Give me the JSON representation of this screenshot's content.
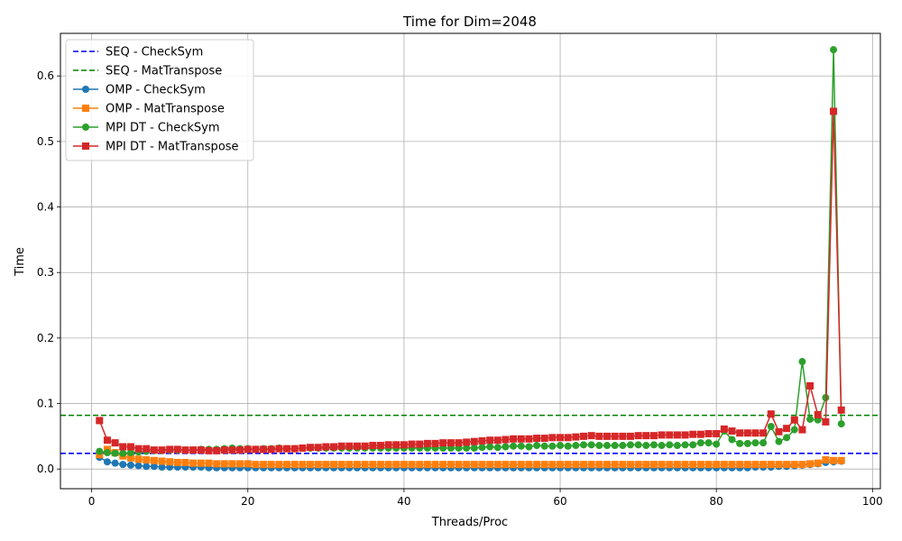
{
  "chart_data": {
    "type": "line",
    "title": "Time for Dim=2048",
    "xlabel": "Threads/Proc",
    "ylabel": "Time",
    "xlim": [
      -4,
      101
    ],
    "ylim": [
      -0.03,
      0.665
    ],
    "xticks": [
      0,
      20,
      40,
      60,
      80,
      100
    ],
    "yticks": [
      0.0,
      0.1,
      0.2,
      0.3,
      0.4,
      0.5,
      0.6
    ],
    "grid": true,
    "legend_position": "top-left",
    "reference_lines": [
      {
        "name": "SEQ - CheckSym",
        "y": 0.024,
        "color": "#0000ff",
        "style": "dashed"
      },
      {
        "name": "SEQ - MatTranspose",
        "y": 0.082,
        "color": "#008000",
        "style": "dashed"
      }
    ],
    "x": [
      1,
      2,
      3,
      4,
      5,
      6,
      7,
      8,
      9,
      10,
      11,
      12,
      13,
      14,
      15,
      16,
      17,
      18,
      19,
      20,
      21,
      22,
      23,
      24,
      25,
      26,
      27,
      28,
      29,
      30,
      31,
      32,
      33,
      34,
      35,
      36,
      37,
      38,
      39,
      40,
      41,
      42,
      43,
      44,
      45,
      46,
      47,
      48,
      49,
      50,
      51,
      52,
      53,
      54,
      55,
      56,
      57,
      58,
      59,
      60,
      61,
      62,
      63,
      64,
      65,
      66,
      67,
      68,
      69,
      70,
      71,
      72,
      73,
      74,
      75,
      76,
      77,
      78,
      79,
      80,
      81,
      82,
      83,
      84,
      85,
      86,
      87,
      88,
      89,
      90,
      91,
      92,
      93,
      94,
      95,
      96
    ],
    "series": [
      {
        "name": "OMP - CheckSym",
        "color": "#1f77b4",
        "marker": "circle",
        "values": [
          0.018,
          0.011,
          0.009,
          0.007,
          0.006,
          0.005,
          0.004,
          0.004,
          0.003,
          0.003,
          0.003,
          0.003,
          0.003,
          0.003,
          0.002,
          0.002,
          0.002,
          0.002,
          0.002,
          0.002,
          0.002,
          0.002,
          0.002,
          0.002,
          0.002,
          0.002,
          0.002,
          0.002,
          0.002,
          0.002,
          0.002,
          0.002,
          0.002,
          0.002,
          0.002,
          0.002,
          0.002,
          0.002,
          0.002,
          0.002,
          0.002,
          0.002,
          0.002,
          0.002,
          0.002,
          0.002,
          0.002,
          0.002,
          0.002,
          0.002,
          0.002,
          0.002,
          0.002,
          0.002,
          0.002,
          0.002,
          0.002,
          0.002,
          0.002,
          0.002,
          0.002,
          0.002,
          0.002,
          0.002,
          0.002,
          0.002,
          0.002,
          0.002,
          0.002,
          0.002,
          0.002,
          0.002,
          0.002,
          0.002,
          0.002,
          0.002,
          0.002,
          0.002,
          0.002,
          0.002,
          0.002,
          0.002,
          0.002,
          0.002,
          0.003,
          0.003,
          0.003,
          0.004,
          0.004,
          0.005,
          0.006,
          0.007,
          0.008,
          0.01,
          0.011,
          0.012
        ]
      },
      {
        "name": "OMP - MatTranspose",
        "color": "#ff7f0e",
        "marker": "square",
        "values": [
          0.022,
          0.03,
          0.025,
          0.02,
          0.017,
          0.015,
          0.014,
          0.013,
          0.012,
          0.011,
          0.01,
          0.01,
          0.009,
          0.009,
          0.009,
          0.008,
          0.008,
          0.008,
          0.008,
          0.008,
          0.007,
          0.007,
          0.007,
          0.007,
          0.007,
          0.007,
          0.007,
          0.007,
          0.007,
          0.007,
          0.007,
          0.007,
          0.007,
          0.007,
          0.007,
          0.007,
          0.007,
          0.007,
          0.007,
          0.007,
          0.007,
          0.007,
          0.007,
          0.007,
          0.007,
          0.007,
          0.007,
          0.007,
          0.007,
          0.007,
          0.007,
          0.007,
          0.007,
          0.007,
          0.007,
          0.007,
          0.007,
          0.007,
          0.007,
          0.007,
          0.007,
          0.007,
          0.007,
          0.007,
          0.007,
          0.007,
          0.007,
          0.007,
          0.007,
          0.007,
          0.007,
          0.007,
          0.007,
          0.007,
          0.007,
          0.007,
          0.007,
          0.007,
          0.007,
          0.007,
          0.007,
          0.007,
          0.007,
          0.007,
          0.007,
          0.007,
          0.007,
          0.007,
          0.007,
          0.007,
          0.007,
          0.008,
          0.009,
          0.014,
          0.013,
          0.013
        ]
      },
      {
        "name": "MPI DT - CheckSym",
        "color": "#2ca02c",
        "marker": "circle",
        "values": [
          0.027,
          0.025,
          0.024,
          0.024,
          0.025,
          0.026,
          0.027,
          0.028,
          0.028,
          0.029,
          0.029,
          0.029,
          0.029,
          0.03,
          0.03,
          0.03,
          0.031,
          0.032,
          0.031,
          0.031,
          0.03,
          0.031,
          0.031,
          0.032,
          0.031,
          0.031,
          0.032,
          0.032,
          0.032,
          0.032,
          0.032,
          0.032,
          0.032,
          0.032,
          0.032,
          0.032,
          0.032,
          0.032,
          0.032,
          0.032,
          0.032,
          0.032,
          0.032,
          0.032,
          0.032,
          0.032,
          0.032,
          0.032,
          0.032,
          0.033,
          0.034,
          0.033,
          0.034,
          0.035,
          0.035,
          0.034,
          0.036,
          0.035,
          0.035,
          0.036,
          0.035,
          0.036,
          0.037,
          0.037,
          0.036,
          0.036,
          0.036,
          0.036,
          0.037,
          0.037,
          0.036,
          0.037,
          0.036,
          0.037,
          0.036,
          0.037,
          0.037,
          0.04,
          0.04,
          0.038,
          0.058,
          0.045,
          0.039,
          0.039,
          0.04,
          0.04,
          0.065,
          0.042,
          0.048,
          0.06,
          0.164,
          0.076,
          0.075,
          0.109,
          0.64,
          0.069
        ]
      },
      {
        "name": "MPI DT - MatTranspose",
        "color": "#d62728",
        "marker": "square",
        "values": [
          0.074,
          0.044,
          0.04,
          0.034,
          0.034,
          0.031,
          0.031,
          0.029,
          0.029,
          0.03,
          0.03,
          0.029,
          0.029,
          0.029,
          0.028,
          0.028,
          0.029,
          0.029,
          0.029,
          0.03,
          0.03,
          0.03,
          0.03,
          0.031,
          0.031,
          0.031,
          0.032,
          0.033,
          0.033,
          0.034,
          0.034,
          0.035,
          0.035,
          0.035,
          0.035,
          0.036,
          0.036,
          0.037,
          0.037,
          0.037,
          0.038,
          0.038,
          0.039,
          0.039,
          0.04,
          0.04,
          0.04,
          0.041,
          0.042,
          0.043,
          0.044,
          0.044,
          0.045,
          0.046,
          0.046,
          0.046,
          0.047,
          0.047,
          0.048,
          0.048,
          0.048,
          0.049,
          0.05,
          0.051,
          0.05,
          0.05,
          0.05,
          0.05,
          0.05,
          0.051,
          0.051,
          0.051,
          0.052,
          0.052,
          0.052,
          0.052,
          0.053,
          0.053,
          0.054,
          0.054,
          0.061,
          0.058,
          0.055,
          0.055,
          0.055,
          0.055,
          0.084,
          0.057,
          0.062,
          0.075,
          0.06,
          0.127,
          0.083,
          0.072,
          0.546,
          0.09
        ]
      }
    ]
  }
}
